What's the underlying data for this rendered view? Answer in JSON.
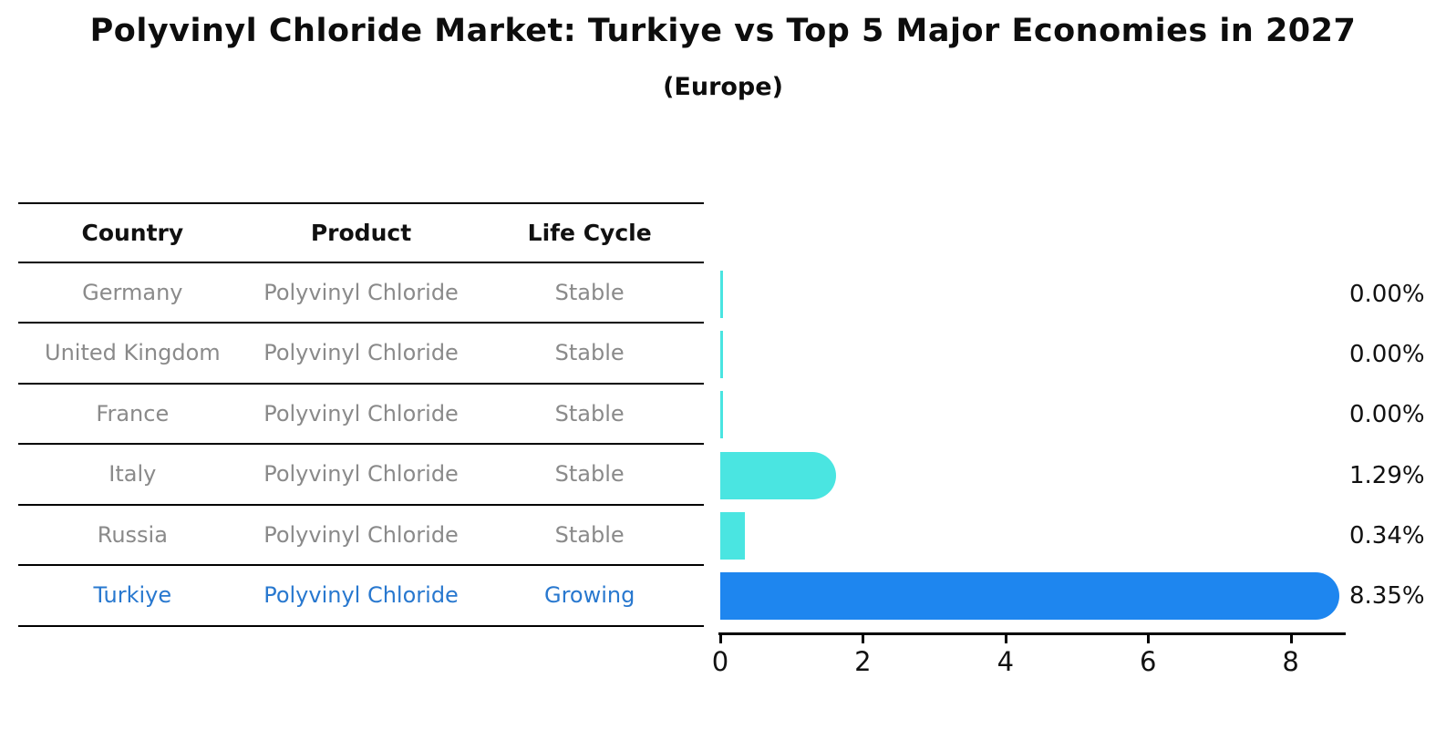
{
  "header": {
    "title": "Polyvinyl Chloride Market: Turkiye vs Top 5 Major Economies in 2027",
    "subtitle": "(Europe)"
  },
  "table": {
    "headers": [
      "Country",
      "Product",
      "Life Cycle"
    ],
    "rows": [
      {
        "country": "Germany",
        "product": "Polyvinyl Chloride",
        "life_cycle": "Stable",
        "highlight": false
      },
      {
        "country": "United Kingdom",
        "product": "Polyvinyl Chloride",
        "life_cycle": "Stable",
        "highlight": false
      },
      {
        "country": "France",
        "product": "Polyvinyl Chloride",
        "life_cycle": "Stable",
        "highlight": false
      },
      {
        "country": "Italy",
        "product": "Polyvinyl Chloride",
        "life_cycle": "Stable",
        "highlight": false
      },
      {
        "country": "Russia",
        "product": "Polyvinyl Chloride",
        "life_cycle": "Stable",
        "highlight": false
      },
      {
        "country": "Turkiye",
        "product": "Polyvinyl Chloride",
        "life_cycle": "Growing",
        "highlight": true
      }
    ]
  },
  "chart_data": {
    "type": "bar",
    "orientation": "horizontal",
    "title": "Polyvinyl Chloride Market: Turkiye vs Top 5 Major Economies in 2027",
    "subtitle": "(Europe)",
    "categories": [
      "Germany",
      "United Kingdom",
      "France",
      "Italy",
      "Russia",
      "Turkiye"
    ],
    "values": [
      0.0,
      0.0,
      0.0,
      1.29,
      0.34,
      8.35
    ],
    "value_labels": [
      "0.00%",
      "0.00%",
      "0.00%",
      "1.29%",
      "0.34%",
      "8.35%"
    ],
    "xticks": [
      0,
      2,
      4,
      6,
      8
    ],
    "xlim": [
      0,
      8.77
    ],
    "grid": false,
    "legend": false,
    "highlight_index": 5
  },
  "colors": {
    "default_bar": "#4AE5E1",
    "highlight_bar": "#1E86EF",
    "highlight_text": "#2878CF",
    "muted_text": "#8A8A8A",
    "text": "#111111"
  }
}
